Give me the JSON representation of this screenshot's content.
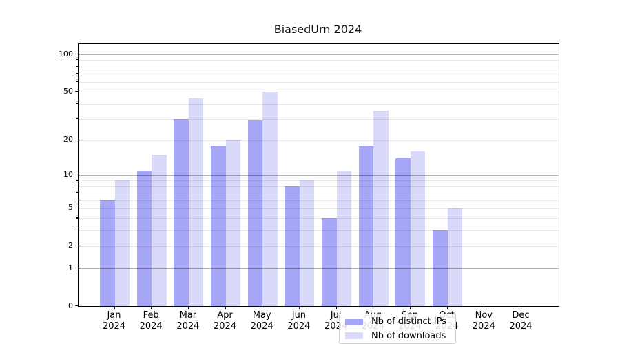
{
  "chart_data": {
    "type": "bar",
    "title": "BiasedUrn 2024",
    "categories": [
      "Jan 2024",
      "Feb 2024",
      "Mar 2024",
      "Apr 2024",
      "May 2024",
      "Jun 2024",
      "Jul 2024",
      "Aug 2024",
      "Sep 2024",
      "Oct 2024",
      "Nov 2024",
      "Dec 2024"
    ],
    "series": [
      {
        "name": "Nb of distinct IPs",
        "color": "#a7a7f8",
        "values": [
          6,
          11,
          30,
          18,
          29,
          8,
          4,
          18,
          14,
          3,
          0,
          0
        ]
      },
      {
        "name": "Nb of downloads",
        "color": "#d9d9f9",
        "values": [
          9,
          15,
          44,
          20,
          50,
          9,
          11,
          35,
          16,
          5,
          0,
          0
        ]
      }
    ],
    "xlabel": "",
    "ylabel": "",
    "yscale": "log1p",
    "ylim": [
      0,
      121
    ],
    "ytick_labels": [
      100,
      50,
      20,
      10,
      5,
      2,
      1,
      0
    ],
    "major_gridlines": [
      1,
      10,
      100
    ],
    "minor_gridlines": [
      2,
      3,
      4,
      5,
      6,
      7,
      8,
      9,
      20,
      30,
      40,
      50,
      60,
      70,
      80,
      90
    ],
    "grid": true,
    "legend_position": "inside-bottom-center",
    "colors": {
      "axis": "#000000",
      "grid_major": "rgba(0,0,0,0.30)",
      "grid_minor": "rgba(0,0,0,0.09)"
    }
  }
}
